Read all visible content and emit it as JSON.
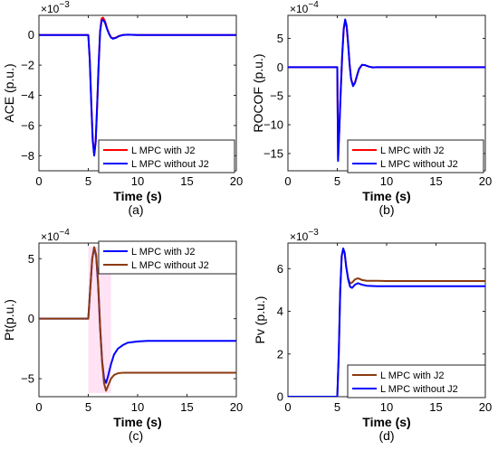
{
  "colors": {
    "red": "#ff0000",
    "blue": "#0000ff",
    "brown": "#8b3a0f",
    "pink_band": "#ffd6f0"
  },
  "chart_data": [
    {
      "type": "line",
      "id": "ACE",
      "panel_label": "(a)",
      "title": "",
      "xlabel": "Time (s)",
      "ylabel": "ACE (p.u.)",
      "exponent": "×10",
      "exponent_power": "-3",
      "xlim": [
        0,
        20
      ],
      "ylim": [
        -9,
        1.3
      ],
      "xticks": [
        0,
        5,
        10,
        15,
        20
      ],
      "yticks": [
        0,
        -2,
        -4,
        -6,
        -8
      ],
      "legend_position": "bottom-right",
      "grid": false,
      "series": [
        {
          "name": "L MPC with J2",
          "color": "#ff0000",
          "x": [
            0,
            5,
            5.15,
            5.3,
            5.45,
            5.6,
            5.75,
            5.9,
            6.05,
            6.2,
            6.35,
            6.5,
            6.7,
            6.9,
            7.1,
            7.3,
            7.5,
            7.8,
            8.1,
            8.5,
            9,
            10,
            20
          ],
          "y": [
            0,
            0,
            -1.6,
            -4.4,
            -6.9,
            -7.9,
            -7.0,
            -4.6,
            -1.9,
            0.3,
            1.1,
            1.15,
            0.9,
            0.45,
            0.1,
            -0.15,
            -0.22,
            -0.17,
            -0.07,
            0,
            0.02,
            0,
            0
          ]
        },
        {
          "name": "L MPC without J2",
          "color": "#0000ff",
          "x": [
            0,
            5,
            5.15,
            5.3,
            5.45,
            5.6,
            5.75,
            5.9,
            6.05,
            6.2,
            6.35,
            6.5,
            6.7,
            6.9,
            7.1,
            7.3,
            7.5,
            7.8,
            8.1,
            8.5,
            9,
            10,
            20
          ],
          "y": [
            0,
            0,
            -1.65,
            -4.5,
            -7.0,
            -8.0,
            -7.1,
            -4.7,
            -2.0,
            0.2,
            0.95,
            1.0,
            0.8,
            0.4,
            0.07,
            -0.17,
            -0.25,
            -0.19,
            -0.08,
            0,
            0.02,
            0,
            0
          ]
        }
      ]
    },
    {
      "type": "line",
      "id": "ROCOF",
      "panel_label": "(b)",
      "title": "",
      "xlabel": "Time (s)",
      "ylabel": "ROCOF (p.u.)",
      "exponent": "×10",
      "exponent_power": "-4",
      "xlim": [
        0,
        20
      ],
      "ylim": [
        -18,
        9
      ],
      "xticks": [
        0,
        5,
        10,
        15,
        20
      ],
      "yticks": [
        5,
        0,
        -5,
        -10,
        -15
      ],
      "legend_position": "bottom-right",
      "grid": false,
      "series": [
        {
          "name": "L MPC with J2",
          "color": "#ff0000",
          "x": [
            0,
            5,
            5.08,
            5.2,
            5.35,
            5.5,
            5.65,
            5.8,
            5.95,
            6.1,
            6.25,
            6.4,
            6.6,
            6.8,
            7.0,
            7.2,
            7.5,
            7.8,
            8.2,
            8.6,
            9,
            10,
            20
          ],
          "y": [
            0,
            0,
            -16.0,
            -11.0,
            -4.0,
            2.0,
            6.5,
            8.0,
            7.0,
            4.0,
            0.5,
            -2.0,
            -3.2,
            -2.6,
            -1.4,
            -0.3,
            0.4,
            0.35,
            0.1,
            -0.05,
            0,
            0,
            0
          ]
        },
        {
          "name": "L MPC without J2",
          "color": "#0000ff",
          "x": [
            0,
            5,
            5.08,
            5.2,
            5.35,
            5.5,
            5.65,
            5.8,
            5.95,
            6.1,
            6.25,
            6.4,
            6.6,
            6.8,
            7.0,
            7.2,
            7.5,
            7.8,
            8.2,
            8.6,
            9,
            10,
            20
          ],
          "y": [
            0,
            0,
            -16.3,
            -11.2,
            -4.2,
            2.1,
            6.7,
            8.3,
            7.2,
            4.1,
            0.4,
            -2.1,
            -3.3,
            -2.7,
            -1.5,
            -0.35,
            0.4,
            0.35,
            0.1,
            -0.05,
            0,
            0,
            0
          ]
        }
      ]
    },
    {
      "type": "line",
      "id": "Pt",
      "panel_label": "(c)",
      "title": "",
      "xlabel": "Time (s)",
      "ylabel": "Pt(p.u.)",
      "exponent": "×10",
      "exponent_power": "-4",
      "xlim": [
        0,
        20
      ],
      "ylim": [
        -6.5,
        6.3
      ],
      "xticks": [
        0,
        5,
        10,
        15,
        20
      ],
      "yticks": [
        5,
        0,
        -5
      ],
      "legend_position": "top-right",
      "grid": false,
      "series": [
        {
          "name": "L MPC with J2",
          "color": "#0000ff",
          "x": [
            0,
            5,
            5.2,
            5.4,
            5.6,
            5.8,
            6.0,
            6.2,
            6.4,
            6.6,
            6.8,
            7.0,
            7.3,
            7.6,
            8.0,
            8.5,
            9,
            10,
            11,
            13,
            20
          ],
          "y": [
            0,
            0,
            2.5,
            5.0,
            5.95,
            5.2,
            2.8,
            -0.8,
            -3.5,
            -5.0,
            -5.35,
            -4.8,
            -3.8,
            -3.0,
            -2.5,
            -2.2,
            -2.0,
            -1.9,
            -1.85,
            -1.85,
            -1.85
          ]
        },
        {
          "name": "L MPC without J2",
          "color": "#8b3a0f",
          "x": [
            0,
            5,
            5.2,
            5.4,
            5.6,
            5.8,
            6.0,
            6.2,
            6.4,
            6.6,
            6.8,
            7.0,
            7.3,
            7.6,
            8.0,
            8.5,
            9,
            10,
            11,
            13,
            20
          ],
          "y": [
            0,
            0,
            2.5,
            5.0,
            5.95,
            5.3,
            3.0,
            -0.6,
            -3.6,
            -5.4,
            -6.0,
            -5.6,
            -5.0,
            -4.7,
            -4.55,
            -4.5,
            -4.5,
            -4.5,
            -4.5,
            -4.5,
            -4.5
          ]
        }
      ]
    },
    {
      "type": "line",
      "id": "Pv",
      "panel_label": "(d)",
      "title": "",
      "xlabel": "Time (s)",
      "ylabel": "Pv (p.u.)",
      "exponent": "×10",
      "exponent_power": "-3",
      "xlim": [
        0,
        20
      ],
      "ylim": [
        0,
        7.2
      ],
      "xticks": [
        0,
        5,
        10,
        15,
        20
      ],
      "yticks": [
        0,
        2,
        4,
        6
      ],
      "legend_position": "bottom-right",
      "grid": false,
      "series": [
        {
          "name": "L MPC with J2",
          "color": "#8b3a0f",
          "x": [
            0,
            5,
            5.15,
            5.3,
            5.45,
            5.6,
            5.75,
            5.9,
            6.1,
            6.3,
            6.5,
            6.8,
            7.1,
            7.5,
            8.0,
            9,
            10,
            20
          ],
          "y": [
            0,
            0,
            2.0,
            5.0,
            6.6,
            6.9,
            6.7,
            6.1,
            5.55,
            5.3,
            5.35,
            5.5,
            5.55,
            5.47,
            5.43,
            5.43,
            5.42,
            5.42
          ]
        },
        {
          "name": "L MPC without J2",
          "color": "#0000ff",
          "x": [
            0,
            5,
            5.15,
            5.3,
            5.45,
            5.6,
            5.75,
            5.9,
            6.1,
            6.3,
            6.5,
            6.8,
            7.1,
            7.5,
            8.0,
            9,
            10,
            20
          ],
          "y": [
            0,
            0,
            2.0,
            5.0,
            6.6,
            6.95,
            6.75,
            6.1,
            5.5,
            5.15,
            5.1,
            5.25,
            5.32,
            5.25,
            5.2,
            5.18,
            5.18,
            5.18
          ]
        }
      ]
    }
  ]
}
